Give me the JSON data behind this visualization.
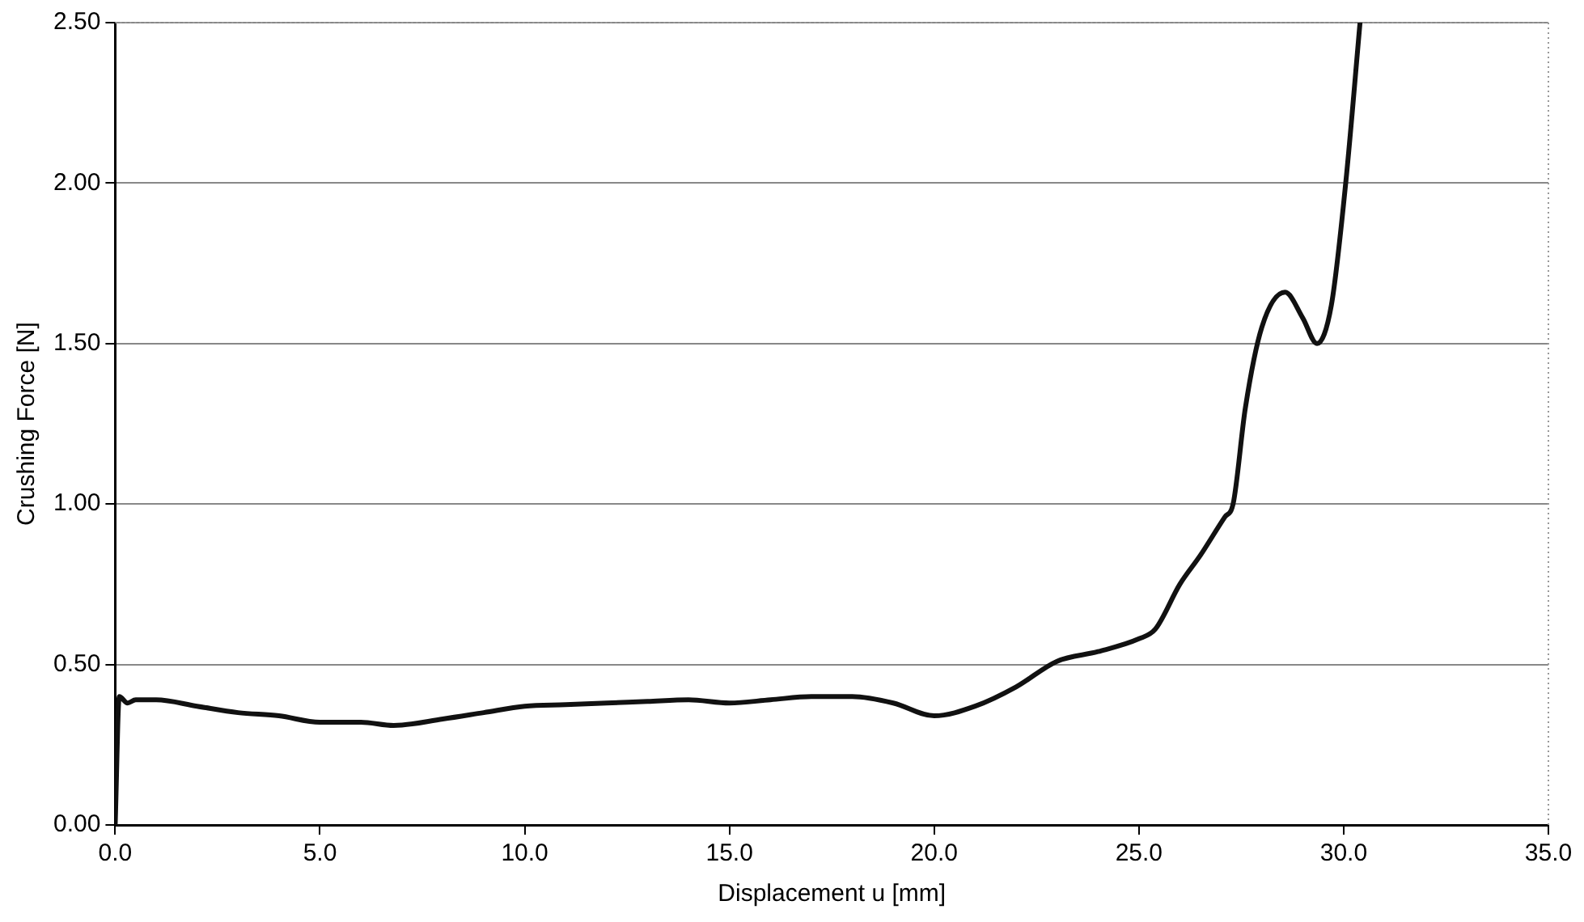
{
  "chart_data": {
    "type": "line",
    "xlabel": "Displacement u [mm]",
    "ylabel": "Crushing Force [N]",
    "series": [
      {
        "color": "#111111",
        "x": [
          0,
          0.1,
          0.3,
          0.5,
          1,
          2,
          3,
          4,
          5,
          6,
          6.8,
          8,
          9,
          10,
          11,
          12,
          13,
          14,
          15,
          16,
          17,
          18,
          19,
          20,
          21,
          22,
          23,
          24,
          25,
          25.4,
          26,
          26.5,
          27.1,
          27.3,
          27.6,
          28,
          28.57,
          29,
          29.35,
          29.7,
          30.05,
          30.4
        ],
        "values": [
          0,
          0.4,
          0.38,
          0.39,
          0.39,
          0.37,
          0.35,
          0.34,
          0.32,
          0.32,
          0.31,
          0.33,
          0.35,
          0.37,
          0.375,
          0.38,
          0.385,
          0.39,
          0.38,
          0.39,
          0.4,
          0.4,
          0.38,
          0.34,
          0.37,
          0.43,
          0.51,
          0.54,
          0.58,
          0.61,
          0.75,
          0.84,
          0.96,
          1.0,
          1.3,
          1.55,
          1.66,
          1.58,
          1.5,
          1.62,
          2.0,
          2.5
        ]
      }
    ],
    "xlim": [
      0,
      35
    ],
    "xticks": [
      {
        "value": 0,
        "label": "0.0"
      },
      {
        "value": 5,
        "label": "5.0"
      },
      {
        "value": 10,
        "label": "10.0"
      },
      {
        "value": 15,
        "label": "15.0"
      },
      {
        "value": 20,
        "label": "20.0"
      },
      {
        "value": 25,
        "label": "25.0"
      },
      {
        "value": 30,
        "label": "30.0"
      },
      {
        "value": 35,
        "label": "35.0"
      }
    ],
    "ylim": [
      0,
      2.5
    ],
    "yticks": [
      {
        "value": 0,
        "label": "0.00"
      },
      {
        "value": 0.5,
        "label": "0.50"
      },
      {
        "value": 1,
        "label": "1.00"
      },
      {
        "value": 1.5,
        "label": "1.50"
      },
      {
        "value": 2,
        "label": "2.00"
      },
      {
        "value": 2.5,
        "label": "2.50"
      }
    ],
    "grid": "y",
    "legend": false,
    "marker": "none",
    "line_style": "solid"
  }
}
